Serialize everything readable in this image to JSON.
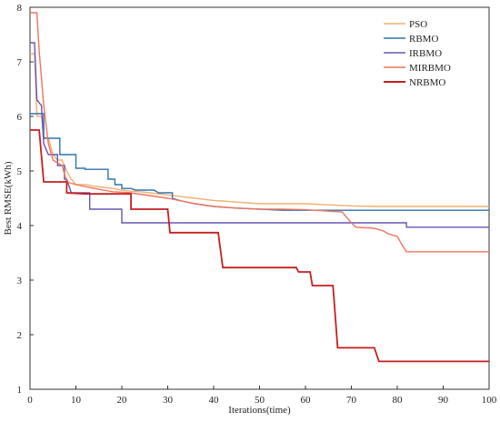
{
  "chart_data": {
    "type": "line",
    "title": "",
    "xlabel": "Iterations(time)",
    "ylabel": "Best RMSE(kWh)",
    "xlim": [
      0,
      100
    ],
    "ylim": [
      1,
      8
    ],
    "xticks": [
      0,
      10,
      20,
      30,
      40,
      50,
      60,
      70,
      80,
      90,
      100
    ],
    "yticks": [
      1,
      2,
      3,
      4,
      5,
      6,
      7,
      8
    ],
    "grid": false,
    "legend_position": "top-right",
    "series": [
      {
        "name": "PSO",
        "color": "#f0b070",
        "points": [
          [
            0,
            7.15
          ],
          [
            1,
            7.15
          ],
          [
            1.5,
            6.0
          ],
          [
            2.5,
            6.0
          ],
          [
            3,
            5.6
          ],
          [
            4,
            5.6
          ],
          [
            5,
            5.3
          ],
          [
            6,
            5.2
          ],
          [
            7,
            5.2
          ],
          [
            8,
            5.0
          ],
          [
            9,
            4.85
          ],
          [
            10,
            4.75
          ],
          [
            12,
            4.75
          ],
          [
            14,
            4.72
          ],
          [
            16,
            4.7
          ],
          [
            18,
            4.68
          ],
          [
            20,
            4.65
          ],
          [
            22,
            4.63
          ],
          [
            24,
            4.62
          ],
          [
            26,
            4.6
          ],
          [
            28,
            4.58
          ],
          [
            30,
            4.56
          ],
          [
            32,
            4.54
          ],
          [
            34,
            4.52
          ],
          [
            36,
            4.5
          ],
          [
            38,
            4.48
          ],
          [
            40,
            4.46
          ],
          [
            42,
            4.45
          ],
          [
            45,
            4.43
          ],
          [
            50,
            4.4
          ],
          [
            55,
            4.4
          ],
          [
            60,
            4.4
          ],
          [
            65,
            4.38
          ],
          [
            70,
            4.36
          ],
          [
            75,
            4.35
          ],
          [
            80,
            4.35
          ],
          [
            90,
            4.35
          ],
          [
            100,
            4.35
          ]
        ]
      },
      {
        "name": "RBMO",
        "color": "#2f73b0",
        "points": [
          [
            0,
            6.05
          ],
          [
            3,
            6.05
          ],
          [
            3,
            5.6
          ],
          [
            6.5,
            5.6
          ],
          [
            6.5,
            5.3
          ],
          [
            10,
            5.3
          ],
          [
            10,
            5.05
          ],
          [
            12,
            5.05
          ],
          [
            12,
            5.03
          ],
          [
            17,
            5.03
          ],
          [
            17,
            4.85
          ],
          [
            18.5,
            4.85
          ],
          [
            18.5,
            4.75
          ],
          [
            20,
            4.75
          ],
          [
            20,
            4.68
          ],
          [
            22,
            4.68
          ],
          [
            23,
            4.65
          ],
          [
            27,
            4.65
          ],
          [
            28,
            4.6
          ],
          [
            31,
            4.6
          ],
          [
            31,
            4.5
          ],
          [
            33,
            4.45
          ],
          [
            36,
            4.4
          ],
          [
            40,
            4.35
          ],
          [
            45,
            4.32
          ],
          [
            50,
            4.3
          ],
          [
            55,
            4.28
          ],
          [
            60,
            4.28
          ],
          [
            100,
            4.28
          ]
        ]
      },
      {
        "name": "IRBMO",
        "color": "#6a55b5",
        "points": [
          [
            0,
            7.35
          ],
          [
            1,
            7.35
          ],
          [
            1.5,
            6.3
          ],
          [
            2.5,
            6.2
          ],
          [
            3,
            5.5
          ],
          [
            4,
            5.3
          ],
          [
            6,
            5.3
          ],
          [
            6,
            5.1
          ],
          [
            7.5,
            5.1
          ],
          [
            7.5,
            4.85
          ],
          [
            8,
            4.85
          ],
          [
            9,
            4.6
          ],
          [
            13,
            4.6
          ],
          [
            13,
            4.3
          ],
          [
            20,
            4.3
          ],
          [
            20,
            4.05
          ],
          [
            30,
            4.05
          ],
          [
            70,
            4.05
          ],
          [
            82,
            4.05
          ],
          [
            82,
            3.97
          ],
          [
            100,
            3.97
          ]
        ]
      },
      {
        "name": "MIRBMO",
        "color": "#ee7560",
        "points": [
          [
            0,
            7.9
          ],
          [
            1.5,
            7.9
          ],
          [
            2,
            7.2
          ],
          [
            3,
            6.2
          ],
          [
            4,
            5.5
          ],
          [
            5,
            5.2
          ],
          [
            7,
            5.1
          ],
          [
            8,
            4.8
          ],
          [
            10,
            4.75
          ],
          [
            14,
            4.68
          ],
          [
            18,
            4.62
          ],
          [
            22,
            4.6
          ],
          [
            26,
            4.55
          ],
          [
            30,
            4.5
          ],
          [
            36,
            4.4
          ],
          [
            40,
            4.35
          ],
          [
            45,
            4.32
          ],
          [
            50,
            4.3
          ],
          [
            55,
            4.3
          ],
          [
            60,
            4.29
          ],
          [
            68,
            4.25
          ],
          [
            69,
            4.15
          ],
          [
            70,
            4.05
          ],
          [
            71,
            3.97
          ],
          [
            75,
            3.95
          ],
          [
            77,
            3.9
          ],
          [
            78,
            3.85
          ],
          [
            80,
            3.8
          ],
          [
            81,
            3.65
          ],
          [
            82,
            3.52
          ],
          [
            100,
            3.52
          ]
        ]
      },
      {
        "name": "NRBMO",
        "color": "#c81e1e",
        "points": [
          [
            0,
            5.75
          ],
          [
            2,
            5.75
          ],
          [
            3,
            4.8
          ],
          [
            8,
            4.8
          ],
          [
            8,
            4.6
          ],
          [
            12,
            4.58
          ],
          [
            22,
            4.58
          ],
          [
            22,
            4.3
          ],
          [
            30,
            4.3
          ],
          [
            30.5,
            3.87
          ],
          [
            41,
            3.87
          ],
          [
            42,
            3.23
          ],
          [
            58,
            3.23
          ],
          [
            58.5,
            3.15
          ],
          [
            61,
            3.15
          ],
          [
            61.5,
            2.9
          ],
          [
            66,
            2.9
          ],
          [
            67,
            1.76
          ],
          [
            75,
            1.76
          ],
          [
            76,
            1.51
          ],
          [
            100,
            1.51
          ]
        ]
      }
    ]
  }
}
